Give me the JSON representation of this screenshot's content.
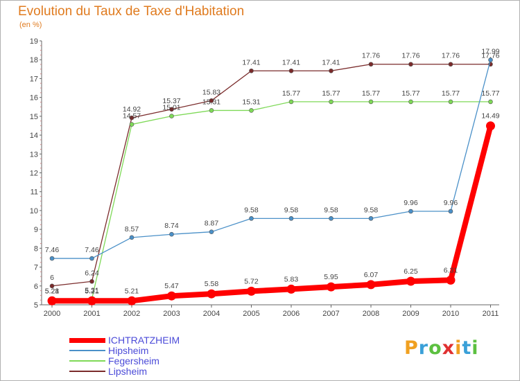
{
  "header": {
    "title": "Evolution du Taux de Taxe d'Habitation",
    "unit": "(en %)"
  },
  "chart_data": {
    "type": "line",
    "title": "Evolution du Taux de Taxe d'Habitation",
    "ylabel": "(en %)",
    "xlabel": "",
    "x": [
      "2000",
      "2001",
      "2002",
      "2003",
      "2004",
      "2005",
      "2006",
      "2007",
      "2008",
      "2009",
      "2010",
      "2011"
    ],
    "ylim": [
      5,
      19
    ],
    "yticks": [
      "5",
      "6",
      "7",
      "8",
      "9",
      "10",
      "11",
      "12",
      "13",
      "14",
      "15",
      "16",
      "17",
      "18",
      "19"
    ],
    "grid": false,
    "legend_position": "bottom-left",
    "series": [
      {
        "name": "ICHTRATZHEIM",
        "color": "#ff0000",
        "values": [
          5.21,
          5.21,
          5.21,
          5.47,
          5.58,
          5.72,
          5.83,
          5.95,
          6.07,
          6.25,
          6.31,
          14.49
        ],
        "labels": [
          "5.21",
          "5.21",
          "5.21",
          "5.47",
          "5.58",
          "5.72",
          "5.83",
          "5.95",
          "6.07",
          "6.25",
          "6.31",
          "14.49"
        ]
      },
      {
        "name": "Hipsheim",
        "color": "#4a90c8",
        "values": [
          7.46,
          7.46,
          8.57,
          8.74,
          8.87,
          9.58,
          9.58,
          9.58,
          9.58,
          9.96,
          9.96,
          17.99
        ],
        "labels": [
          "7.46",
          "7.46",
          "8.57",
          "8.74",
          "8.87",
          "9.58",
          "9.58",
          "9.58",
          "9.58",
          "9.96",
          "9.96",
          "17.99"
        ]
      },
      {
        "name": "Fegersheim",
        "color": "#7ed957",
        "values": [
          5.28,
          5.31,
          14.57,
          15.01,
          15.31,
          15.31,
          15.77,
          15.77,
          15.77,
          15.77,
          15.77,
          15.77
        ],
        "labels": [
          "5.28",
          "5.31",
          "14.57",
          "15.01",
          "15.31",
          "15.31",
          "15.77",
          "15.77",
          "15.77",
          "15.77",
          "15.77",
          "15.77"
        ]
      },
      {
        "name": "Lipsheim",
        "color": "#7a2b2b",
        "values": [
          6,
          6.24,
          14.92,
          15.37,
          15.83,
          17.41,
          17.41,
          17.41,
          17.76,
          17.76,
          17.76,
          17.76
        ],
        "labels": [
          "6",
          "6.24",
          "14.92",
          "15.37",
          "15.83",
          "17.41",
          "17.41",
          "17.41",
          "17.76",
          "17.76",
          "17.76",
          "17.76"
        ]
      }
    ]
  },
  "legend": {
    "items": [
      "ICHTRATZHEIM",
      "Hipsheim",
      "Fegersheim",
      "Lipsheim"
    ]
  },
  "logo": {
    "letters": [
      "P",
      "r",
      "o",
      "x",
      "i",
      "t",
      "i"
    ],
    "colors": [
      "#f0a020",
      "#3aa0d8",
      "#5cc040",
      "#e03030",
      "#f0a020",
      "#3aa0d8",
      "#5cc040"
    ]
  }
}
